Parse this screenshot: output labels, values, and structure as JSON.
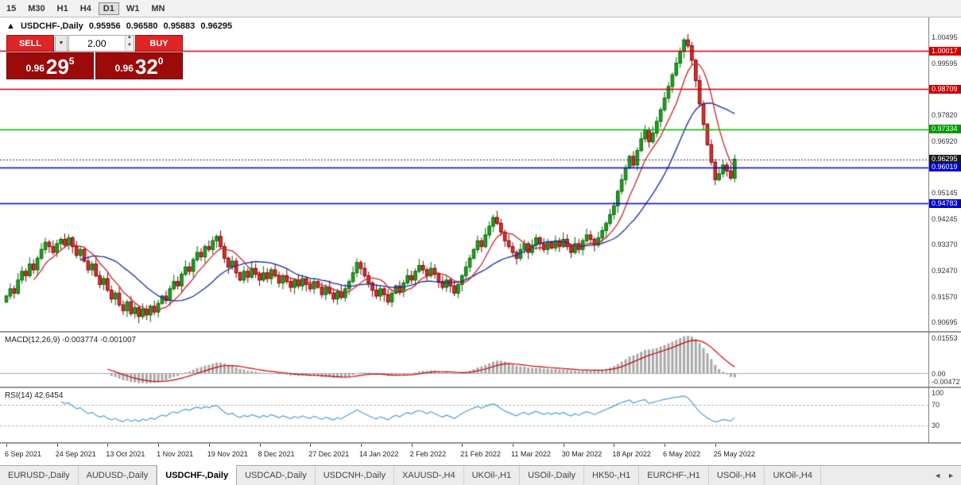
{
  "toolbar": {
    "timeframes": [
      {
        "label": "15",
        "active": false
      },
      {
        "label": "M30",
        "active": false
      },
      {
        "label": "H1",
        "active": false
      },
      {
        "label": "H4",
        "active": false
      },
      {
        "label": "D1",
        "active": true
      },
      {
        "label": "W1",
        "active": false
      },
      {
        "label": "MN",
        "active": false
      }
    ]
  },
  "header": {
    "marker": "▲",
    "title": "USDCHF-,Daily",
    "open": "0.95956",
    "high": "0.96580",
    "low": "0.95883",
    "close": "0.96295"
  },
  "trade": {
    "sell_label": "SELL",
    "buy_label": "BUY",
    "volume": "2.00",
    "dropdown_icon": "▼",
    "spin_up": "▲",
    "spin_down": "▼",
    "sell_price": {
      "prefix": "0.96",
      "big": "29",
      "sup": "5"
    },
    "buy_price": {
      "prefix": "0.96",
      "big": "32",
      "sup": "0"
    }
  },
  "chart": {
    "levels": [
      {
        "value": 1.00017,
        "color": "#cc0000"
      },
      {
        "value": 0.98709,
        "color": "#cc0000"
      },
      {
        "value": 0.97334,
        "color": "#00b300"
      },
      {
        "value": 0.96019,
        "color": "#0000cc"
      },
      {
        "value": 0.94783,
        "color": "#0000cc"
      }
    ],
    "current_price": {
      "value": 0.96295,
      "label": "0.96295"
    },
    "badges": [
      {
        "text": "1.00017",
        "value": 1.00017,
        "color": "#cc0000"
      },
      {
        "text": "0.98709",
        "value": 0.98709,
        "color": "#cc0000"
      },
      {
        "text": "0.97334",
        "value": 0.97334,
        "color": "#009900"
      },
      {
        "text": "0.96295",
        "value": 0.96295,
        "color": "#1a1a1a"
      },
      {
        "text": "0.96019",
        "value": 0.96019,
        "color": "#0000cc"
      },
      {
        "text": "0.94783",
        "value": 0.94783,
        "color": "#0000cc"
      }
    ]
  },
  "chart_data": {
    "type": "candlestick",
    "title": "USDCHF Daily",
    "scale_factor": 10000,
    "first_open": 9140,
    "y_range": [
      0.904,
      1.0117
    ],
    "closes": [
      9160,
      9185,
      9170,
      9215,
      9245,
      9230,
      9270,
      9250,
      9290,
      9320,
      9345,
      9330,
      9310,
      9340,
      9355,
      9335,
      9360,
      9330,
      9300,
      9320,
      9280,
      9250,
      9270,
      9230,
      9200,
      9220,
      9180,
      9150,
      9170,
      9130,
      9110,
      9140,
      9100,
      9120,
      9090,
      9115,
      9095,
      9125,
      9105,
      9135,
      9160,
      9145,
      9185,
      9210,
      9195,
      9235,
      9260,
      9245,
      9285,
      9310,
      9295,
      9330,
      9320,
      9350,
      9365,
      9330,
      9290,
      9260,
      9280,
      9240,
      9215,
      9245,
      9225,
      9255,
      9235,
      9215,
      9240,
      9220,
      9250,
      9230,
      9205,
      9230,
      9210,
      9190,
      9215,
      9195,
      9220,
      9200,
      9185,
      9210,
      9190,
      9165,
      9190,
      9170,
      9150,
      9175,
      9155,
      9185,
      9210,
      9240,
      9275,
      9255,
      9230,
      9205,
      9180,
      9160,
      9185,
      9165,
      9140,
      9170,
      9195,
      9175,
      9205,
      9230,
      9215,
      9245,
      9265,
      9250,
      9230,
      9255,
      9235,
      9210,
      9190,
      9215,
      9195,
      9170,
      9200,
      9230,
      9260,
      9290,
      9320,
      9350,
      9330,
      9370,
      9400,
      9430,
      9410,
      9380,
      9350,
      9330,
      9310,
      9290,
      9320,
      9340,
      9310,
      9335,
      9360,
      9340,
      9320,
      9345,
      9325,
      9350,
      9330,
      9355,
      9330,
      9310,
      9340,
      9320,
      9350,
      9370,
      9355,
      9335,
      9360,
      9385,
      9410,
      9440,
      9470,
      9520,
      9560,
      9600,
      9640,
      9610,
      9660,
      9700,
      9730,
      9690,
      9720,
      9760,
      9800,
      9840,
      9880,
      9920,
      9960,
      10000,
      10040,
      10020,
      9970,
      9900,
      9820,
      9750,
      9680,
      9620,
      9560,
      9580,
      9610,
      9590,
      9565,
      9630
    ],
    "x_labels": [
      {
        "text": "6 Sep 2021",
        "index": 0
      },
      {
        "text": "24 Sep 2021",
        "index": 13
      },
      {
        "text": "13 Oct 2021",
        "index": 26
      },
      {
        "text": "1 Nov 2021",
        "index": 39
      },
      {
        "text": "19 Nov 2021",
        "index": 52
      },
      {
        "text": "8 Dec 2021",
        "index": 65
      },
      {
        "text": "27 Dec 2021",
        "index": 78
      },
      {
        "text": "14 Jan 2022",
        "index": 91
      },
      {
        "text": "2 Feb 2022",
        "index": 104
      },
      {
        "text": "21 Feb 2022",
        "index": 117
      },
      {
        "text": "11 Mar 2022",
        "index": 130
      },
      {
        "text": "30 Mar 2022",
        "index": 143
      },
      {
        "text": "18 Apr 2022",
        "index": 156
      },
      {
        "text": "6 May 2022",
        "index": 169
      },
      {
        "text": "25 May 2022",
        "index": 182
      }
    ],
    "y_ticks": [
      "1.00495",
      "0.99595",
      "0.97820",
      "0.96920",
      "0.95145",
      "0.94245",
      "0.93370",
      "0.92470",
      "0.91570",
      "0.90695"
    ],
    "indicators": {
      "ma_fast_period": 8,
      "ma_slow_period": 20,
      "macd": [
        12,
        26,
        9
      ],
      "rsi": 14
    }
  },
  "macd_panel": {
    "label": "MACD(12,26,9) -0.003774 -0.001007",
    "ticks": [
      "0.01553",
      "0.00",
      "-0.00472"
    ]
  },
  "rsi_panel": {
    "label": "RSI(14) 42.6454",
    "ticks": [
      "100",
      "70",
      "30"
    ],
    "levels": [
      70,
      30
    ]
  },
  "tabs": {
    "nav_left": "◄",
    "nav_right": "►",
    "items": [
      {
        "label": "EURUSD-,Daily",
        "active": false
      },
      {
        "label": "AUDUSD-,Daily",
        "active": false
      },
      {
        "label": "USDCHF-,Daily",
        "active": true
      },
      {
        "label": "USDCAD-,Daily",
        "active": false
      },
      {
        "label": "USDCNH-,Daily",
        "active": false
      },
      {
        "label": "XAUUSD-,H4",
        "active": false
      },
      {
        "label": "UKOil-,H1",
        "active": false
      },
      {
        "label": "USOil-,Daily",
        "active": false
      },
      {
        "label": "HK50-,H1",
        "active": false
      },
      {
        "label": "EURCHF-,H1",
        "active": false
      },
      {
        "label": "USOil-,H4",
        "active": false
      },
      {
        "label": "UKOil-,H4",
        "active": false
      }
    ]
  },
  "colors": {
    "up_fill": "#1ea11e",
    "up_border": "#066606",
    "down_fill": "#e03030",
    "down_border": "#7a0000",
    "ma_fast": "#cc2222",
    "ma_slow": "#152a9e",
    "macd_hist": "#a8a8a8",
    "macd_signal": "#cc0000",
    "rsi": "#4f9fd8"
  }
}
